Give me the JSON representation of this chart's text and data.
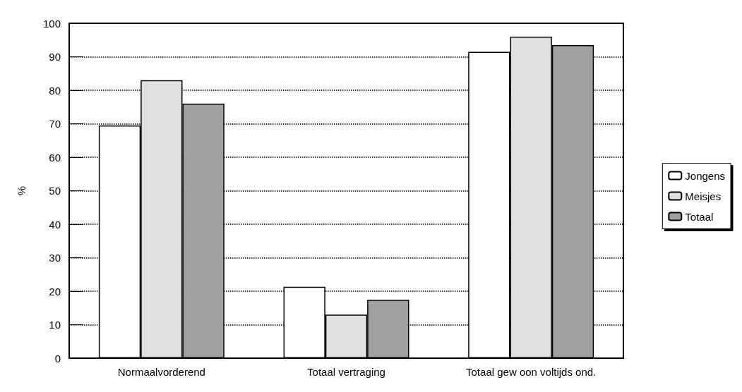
{
  "chart_data": {
    "type": "bar",
    "ylabel": "%",
    "categories": [
      "Normaalvorderend",
      "Totaal vertraging",
      "Totaal gew oon voltijds ond."
    ],
    "series": [
      {
        "name": "Jongens",
        "color": "#ffffff",
        "values": [
          69.5,
          21.3,
          91.5
        ]
      },
      {
        "name": "Meisjes",
        "color": "#e0e0e0",
        "values": [
          83,
          13,
          96
        ]
      },
      {
        "name": "Totaal",
        "color": "#a0a0a0",
        "values": [
          76,
          17.4,
          93.5
        ]
      }
    ],
    "ylim": [
      0,
      100
    ],
    "yticks": [
      0,
      10,
      20,
      30,
      40,
      50,
      60,
      70,
      80,
      90,
      100
    ],
    "grid": "y",
    "legend": "right"
  }
}
